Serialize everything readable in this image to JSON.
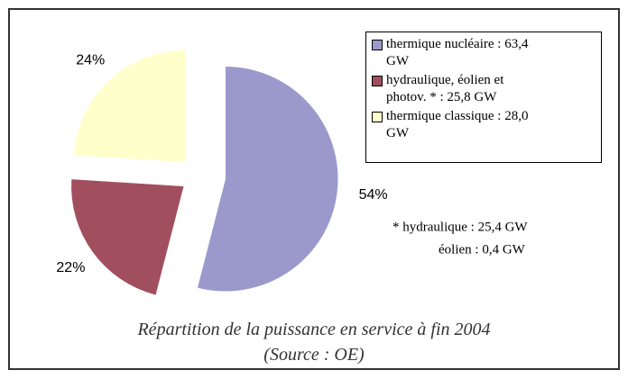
{
  "chart_data": {
    "type": "pie",
    "title": "Répartition de la puissance en service à fin 2004",
    "subtitle": "(Source : OE)",
    "categories": [
      "thermique nucléaire : 63,4 GW",
      "hydraulique, éolien et photov. * : 25,8 GW",
      "thermique classique : 28,0 GW"
    ],
    "values": [
      54,
      22,
      24
    ],
    "value_labels": [
      "54%",
      "22%",
      "24%"
    ],
    "colors": [
      "#9b99cc",
      "#a14f5e",
      "#ffffcc"
    ],
    "notes": [
      "* hydraulique : 25,4 GW",
      "éolien : 0,4 GW"
    ]
  }
}
